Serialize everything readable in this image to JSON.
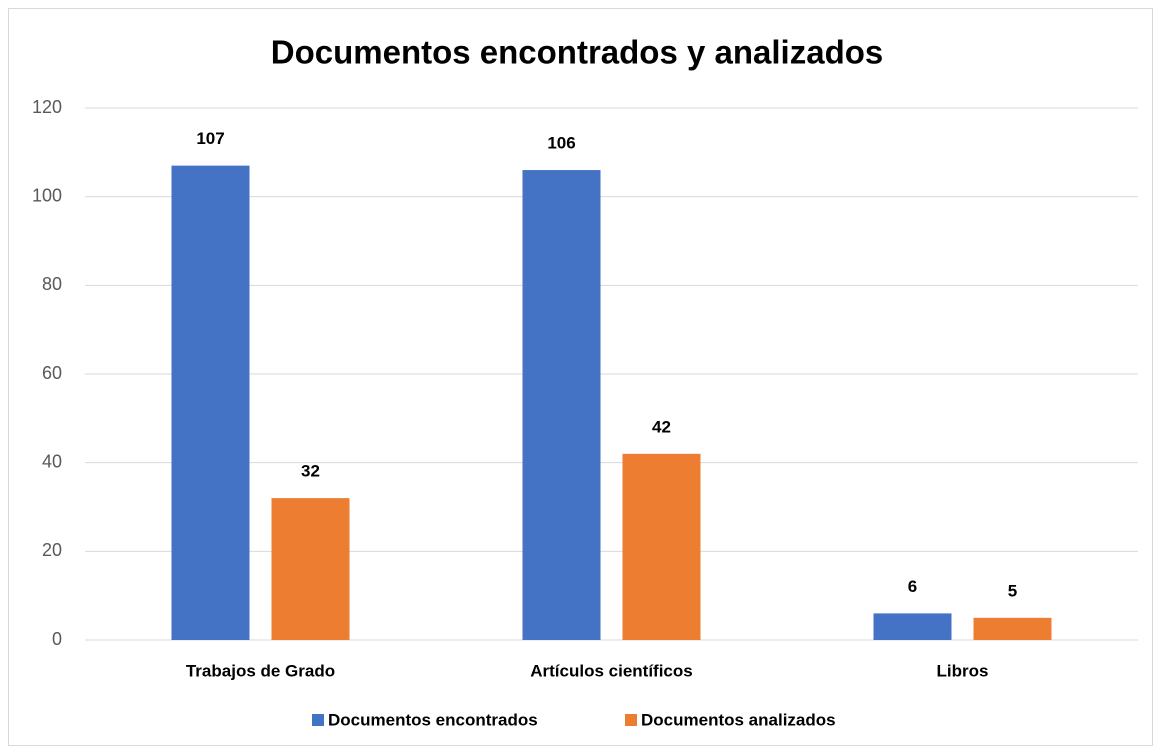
{
  "chart_data": {
    "type": "bar",
    "title": "Documentos encontrados y analizados",
    "categories": [
      "Trabajos de Grado",
      "Artículos científicos",
      "Libros"
    ],
    "series": [
      {
        "name": "Documentos encontrados",
        "color": "#4472c4",
        "values": [
          107,
          106,
          6
        ]
      },
      {
        "name": "Documentos analizados",
        "color": "#ed7d31",
        "values": [
          32,
          42,
          5
        ]
      }
    ],
    "ylim": [
      0,
      120
    ],
    "yticks": [
      0,
      20,
      40,
      60,
      80,
      100,
      120
    ],
    "grid": true,
    "legend": "bottom"
  }
}
